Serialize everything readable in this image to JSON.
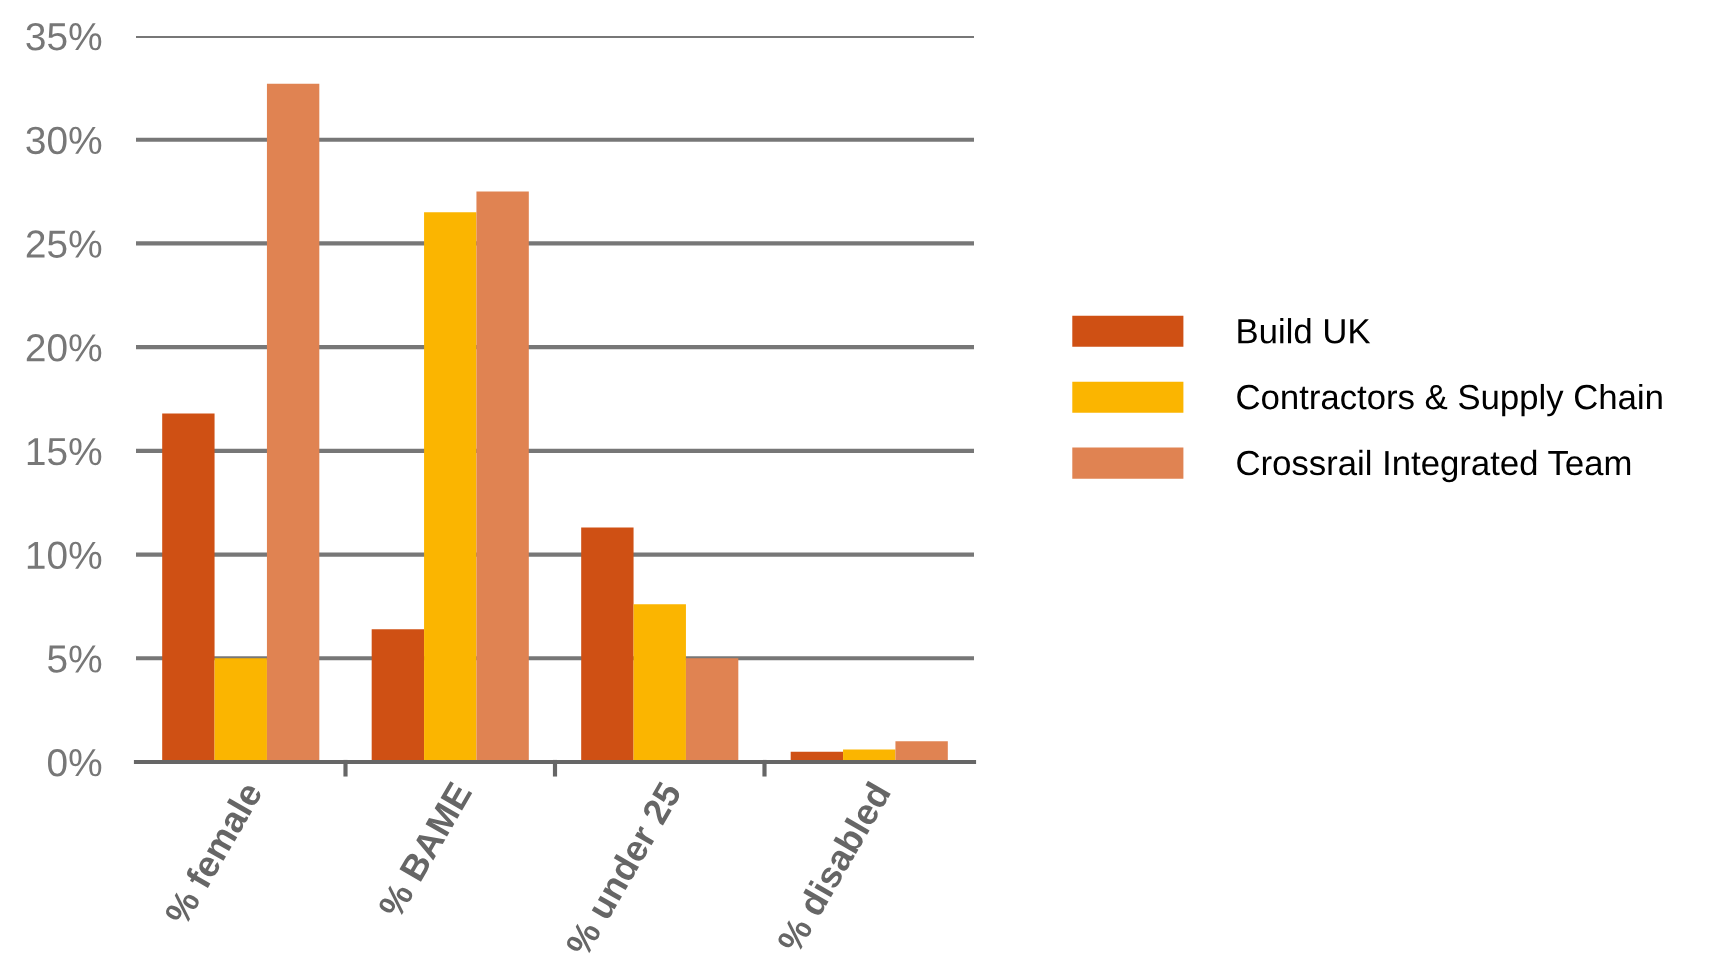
{
  "chart_data": {
    "type": "bar",
    "categories": [
      "% female",
      "% BAME",
      "% under 25",
      "% disabled"
    ],
    "series": [
      {
        "name": "Build UK",
        "color": "#cf5014",
        "values": [
          16.8,
          6.4,
          11.3,
          0.5
        ]
      },
      {
        "name": "Contractors & Supply Chain",
        "color": "#fbb500",
        "values": [
          5.0,
          26.5,
          7.6,
          0.6
        ]
      },
      {
        "name": "Crossrail Integrated Team",
        "color": "#e08352",
        "values": [
          32.7,
          27.5,
          5.0,
          1.0
        ]
      }
    ],
    "ylim": [
      0,
      35
    ],
    "yticks": [
      {
        "value": 0,
        "label": "0%"
      },
      {
        "value": 5,
        "label": "5%"
      },
      {
        "value": 10,
        "label": "10%"
      },
      {
        "value": 15,
        "label": "15%"
      },
      {
        "value": 20,
        "label": "20%"
      },
      {
        "value": 25,
        "label": "25%"
      },
      {
        "value": 30,
        "label": "30%"
      },
      {
        "value": 35,
        "label": "35%"
      }
    ],
    "grid": "y",
    "legend": "right"
  }
}
